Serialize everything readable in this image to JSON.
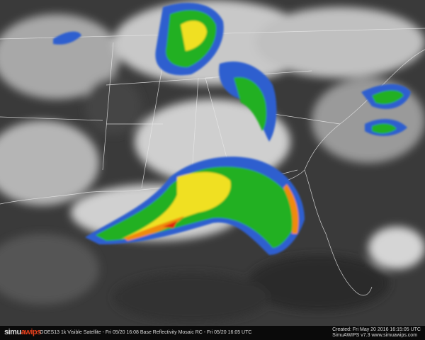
{
  "footer": {
    "logo_text": "simuawips",
    "logo_part1": "simu",
    "logo_part2": "awips",
    "description": "GOES13 1k Visible Satellite - Fri 05/20 16:08 Base Reflectivity Mosaic RC - Fri 05/20 16:05 UTC",
    "created": "Created: Fri May 20 2016 16:15:05 UTC",
    "version": "SimuAWIPS v7.3 www.simuawips.com"
  },
  "colors": {
    "radar_light": "#2f5fcf",
    "radar_green": "#22b022",
    "radar_yellow": "#f0e020",
    "radar_orange": "#f08a10",
    "radar_red": "#e02010",
    "logo_accent": "#e8401c"
  }
}
